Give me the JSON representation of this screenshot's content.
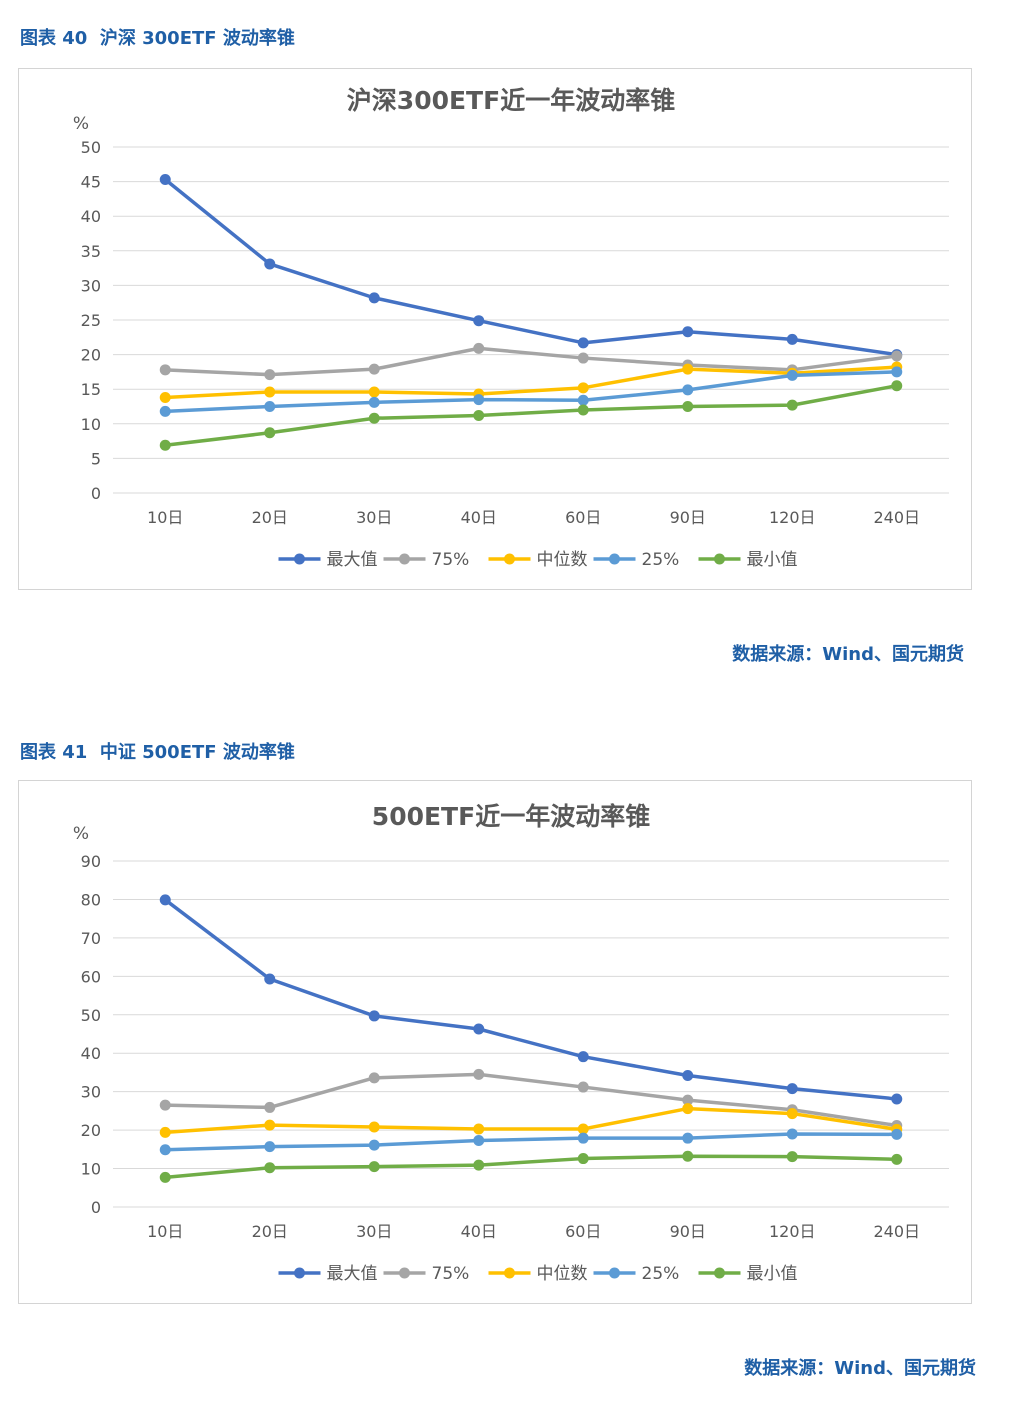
{
  "figures": [
    {
      "caption": "图表 40  沪深 300ETF 波动率锥",
      "source": "数据来源：Wind、国元期货",
      "chart_data": {
        "type": "line",
        "title": "沪深300ETF近一年波动率锥",
        "ylabel": "%",
        "xlabel": "",
        "ylim": [
          0,
          50
        ],
        "yticks": [
          0,
          5,
          10,
          15,
          20,
          25,
          30,
          35,
          40,
          45,
          50
        ],
        "grid": true,
        "legend_position": "bottom",
        "categories": [
          "10日",
          "20日",
          "30日",
          "40日",
          "60日",
          "90日",
          "120日",
          "240日"
        ],
        "series": [
          {
            "name": "最大值",
            "color": "#4472c4",
            "values": [
              45.3,
              33.1,
              28.2,
              24.9,
              21.7,
              23.3,
              22.2,
              20.0
            ]
          },
          {
            "name": "75%",
            "color": "#a5a5a5",
            "values": [
              17.8,
              17.1,
              17.9,
              20.9,
              19.5,
              18.5,
              17.8,
              19.8
            ]
          },
          {
            "name": "中位数",
            "color": "#ffc000",
            "values": [
              13.8,
              14.6,
              14.6,
              14.3,
              15.2,
              17.9,
              17.3,
              18.2
            ]
          },
          {
            "name": "25%",
            "color": "#5b9bd5",
            "values": [
              11.8,
              12.5,
              13.1,
              13.5,
              13.4,
              14.9,
              17.0,
              17.5
            ]
          },
          {
            "name": "最小值",
            "color": "#70ad47",
            "values": [
              6.9,
              8.7,
              10.8,
              11.2,
              12.0,
              12.5,
              12.7,
              15.5
            ]
          }
        ]
      }
    },
    {
      "caption": "图表 41  中证 500ETF 波动率锥",
      "source": "数据来源：Wind、国元期货",
      "chart_data": {
        "type": "line",
        "title": "500ETF近一年波动率锥",
        "ylabel": "%",
        "xlabel": "",
        "ylim": [
          0,
          90
        ],
        "yticks": [
          0,
          10,
          20,
          30,
          40,
          50,
          60,
          70,
          80,
          90
        ],
        "grid": true,
        "legend_position": "bottom",
        "categories": [
          "10日",
          "20日",
          "30日",
          "40日",
          "60日",
          "90日",
          "120日",
          "240日"
        ],
        "series": [
          {
            "name": "最大值",
            "color": "#4472c4",
            "values": [
              79.9,
              59.3,
              49.7,
              46.3,
              39.1,
              34.2,
              30.8,
              28.1
            ]
          },
          {
            "name": "75%",
            "color": "#a5a5a5",
            "values": [
              26.5,
              25.9,
              33.6,
              34.5,
              31.2,
              27.8,
              25.3,
              21.2
            ]
          },
          {
            "name": "中位数",
            "color": "#ffc000",
            "values": [
              19.4,
              21.3,
              20.8,
              20.3,
              20.3,
              25.6,
              24.3,
              20.2
            ]
          },
          {
            "name": "25%",
            "color": "#5b9bd5",
            "values": [
              14.9,
              15.7,
              16.1,
              17.3,
              17.9,
              17.9,
              19.0,
              18.9
            ]
          },
          {
            "name": "最小值",
            "color": "#70ad47",
            "values": [
              7.7,
              10.2,
              10.5,
              10.9,
              12.6,
              13.2,
              13.1,
              12.4
            ]
          }
        ]
      }
    }
  ]
}
